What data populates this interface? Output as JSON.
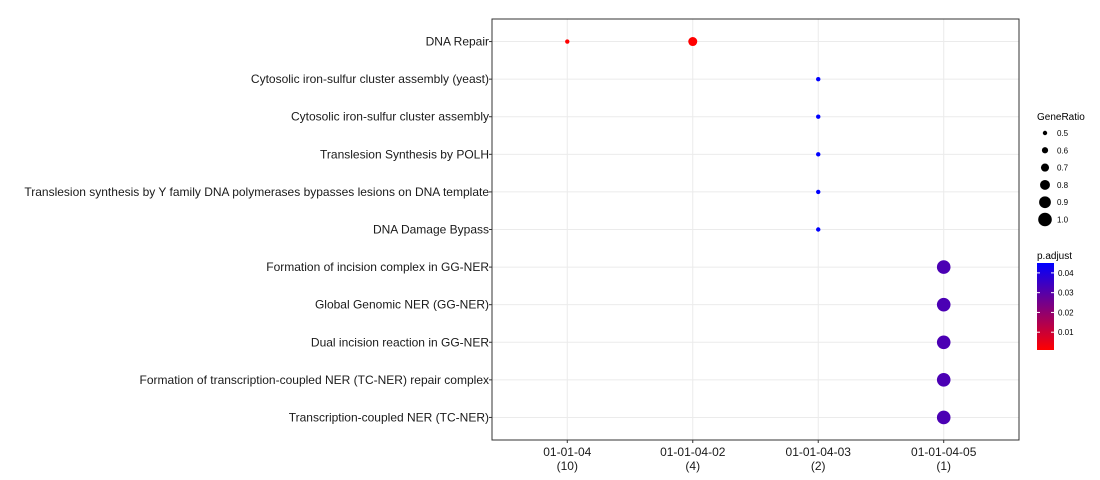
{
  "chart_data": {
    "type": "scatter",
    "title": "",
    "xlabel": "",
    "ylabel": "",
    "x_categories": [
      {
        "label": "01-01-04",
        "count": "(10)"
      },
      {
        "label": "01-01-04-02",
        "count": "(4)"
      },
      {
        "label": "01-01-04-03",
        "count": "(2)"
      },
      {
        "label": "01-01-04-05",
        "count": "(1)"
      }
    ],
    "y_categories": [
      "DNA Repair",
      "Cytosolic iron-sulfur cluster assembly (yeast)",
      "Cytosolic iron-sulfur cluster assembly",
      "Translesion Synthesis by POLH",
      "Translesion synthesis by Y family DNA polymerases bypasses lesions on DNA template",
      "DNA Damage Bypass",
      "Formation of incision complex in GG-NER",
      "Global Genomic NER (GG-NER)",
      "Dual incision reaction in GG-NER",
      "Formation of transcription-coupled NER (TC-NER) repair complex",
      "Transcription-coupled NER (TC-NER)"
    ],
    "points": [
      {
        "x": "01-01-04",
        "y": "DNA Repair",
        "gene_ratio": 0.5,
        "p_adjust": 0.001
      },
      {
        "x": "01-01-04-02",
        "y": "DNA Repair",
        "gene_ratio": 0.75,
        "p_adjust": 0.001
      },
      {
        "x": "01-01-04-03",
        "y": "Cytosolic iron-sulfur cluster assembly (yeast)",
        "gene_ratio": 0.5,
        "p_adjust": 0.045
      },
      {
        "x": "01-01-04-03",
        "y": "Cytosolic iron-sulfur cluster assembly",
        "gene_ratio": 0.5,
        "p_adjust": 0.045
      },
      {
        "x": "01-01-04-03",
        "y": "Translesion Synthesis by POLH",
        "gene_ratio": 0.5,
        "p_adjust": 0.045
      },
      {
        "x": "01-01-04-03",
        "y": "Translesion synthesis by Y family DNA polymerases bypasses lesions on DNA template",
        "gene_ratio": 0.5,
        "p_adjust": 0.045
      },
      {
        "x": "01-01-04-03",
        "y": "DNA Damage Bypass",
        "gene_ratio": 0.5,
        "p_adjust": 0.045
      },
      {
        "x": "01-01-04-05",
        "y": "Formation of incision complex in GG-NER",
        "gene_ratio": 1.0,
        "p_adjust": 0.032
      },
      {
        "x": "01-01-04-05",
        "y": "Global Genomic NER (GG-NER)",
        "gene_ratio": 1.0,
        "p_adjust": 0.032
      },
      {
        "x": "01-01-04-05",
        "y": "Dual incision reaction in GG-NER",
        "gene_ratio": 1.0,
        "p_adjust": 0.032
      },
      {
        "x": "01-01-04-05",
        "y": "Formation of transcription-coupled NER (TC-NER) repair complex",
        "gene_ratio": 1.0,
        "p_adjust": 0.032
      },
      {
        "x": "01-01-04-05",
        "y": "Transcription-coupled NER (TC-NER)",
        "gene_ratio": 1.0,
        "p_adjust": 0.032
      }
    ],
    "size_legend": {
      "title": "GeneRatio",
      "values": [
        0.5,
        0.6,
        0.7,
        0.8,
        0.9,
        1.0
      ],
      "labels": [
        "0.5",
        "0.6",
        "0.7",
        "0.8",
        "0.9",
        "1.0"
      ]
    },
    "color_legend": {
      "title": "p.adjust",
      "range": [
        0.001,
        0.045
      ],
      "ticks": [
        0.01,
        0.02,
        0.03,
        0.04
      ],
      "tick_labels": [
        "0.01",
        "0.02",
        "0.03",
        "0.04"
      ],
      "low_color": "#ff0000",
      "high_color": "#0000ff"
    },
    "grid": true,
    "legend_position": "right",
    "colors": {
      "panel_border": "#333333",
      "grid": "#ebebeb",
      "background": "#ffffff"
    }
  }
}
